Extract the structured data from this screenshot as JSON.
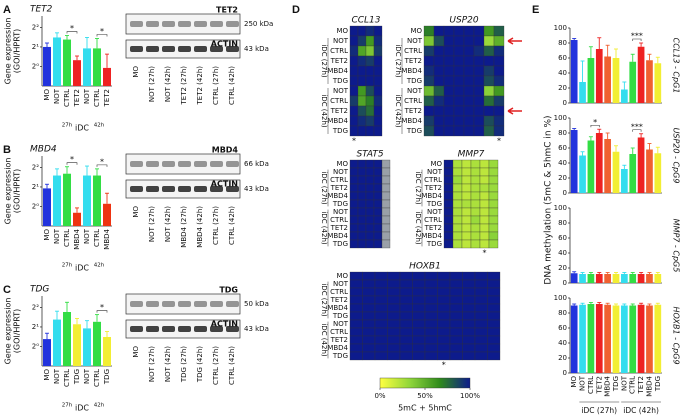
{
  "panel_labels": [
    "A",
    "B",
    "C",
    "D",
    "E"
  ],
  "chart_data": [
    {
      "type": "bar",
      "title": "TET2",
      "y_label": [
        "Gene expression",
        "(GOI/HPRT)"
      ],
      "log_base": 2,
      "categories": [
        "MO",
        "NOT",
        "CTRL",
        "TET2",
        "NOT",
        "CTRL",
        "TET2"
      ],
      "colors": [
        "#2233dd",
        "#33ddee",
        "#33dd44",
        "#ee2222",
        "#33ddee",
        "#33dd44",
        "#ee2222"
      ],
      "values": [
        2.0,
        2.8,
        2.6,
        1.25,
        1.9,
        1.9,
        0.95
      ],
      "errors": [
        0.3,
        0.5,
        0.4,
        0.2,
        0.9,
        0.8,
        0.6
      ],
      "ylim": [
        0.5,
        6
      ],
      "yticks": [
        {
          "value": 1,
          "label": "2⁰"
        },
        {
          "value": 2,
          "label": "2¹"
        },
        {
          "value": 4,
          "label": "2²"
        }
      ],
      "group_labels": [
        "27h",
        "iDC",
        "42h"
      ],
      "annotations": [
        "*",
        "*"
      ]
    },
    {
      "type": "bar",
      "title": "MBD4",
      "y_label": [
        "Gene expression",
        "(GOI/HPRT)"
      ],
      "log_base": 2,
      "categories": [
        "MO",
        "NOT",
        "CTRL",
        "MBD4",
        "NOT",
        "CTRL",
        "MBD4"
      ],
      "colors": [
        "#2233dd",
        "#33ddee",
        "#33dd44",
        "#ee3311",
        "#33ddee",
        "#33dd44",
        "#ee3311"
      ],
      "values": [
        1.9,
        3.0,
        3.2,
        0.8,
        3.0,
        3.0,
        1.1
      ],
      "errors": [
        0.3,
        0.8,
        0.9,
        0.15,
        1.2,
        0.8,
        0.5
      ],
      "ylim": [
        0.5,
        6
      ],
      "yticks": [
        {
          "value": 1,
          "label": "2⁰"
        },
        {
          "value": 2,
          "label": "2¹"
        },
        {
          "value": 4,
          "label": "2²"
        }
      ],
      "group_labels": [
        "27h",
        "iDC",
        "42h"
      ],
      "annotations": [
        "*",
        "*"
      ]
    },
    {
      "type": "bar",
      "title": "TDG",
      "y_label": [
        "Gene expression",
        "(GOI/HPRT)"
      ],
      "log_base": 2,
      "categories": [
        "MO",
        "NOT",
        "CTRL",
        "TDG",
        "NOT",
        "CTRL",
        "TDG"
      ],
      "colors": [
        "#2233dd",
        "#33ddee",
        "#33dd44",
        "#f2ee33",
        "#33ddee",
        "#33dd44",
        "#f2ee33"
      ],
      "values": [
        1.3,
        2.6,
        3.4,
        2.2,
        1.9,
        2.4,
        1.4
      ],
      "errors": [
        0.3,
        0.9,
        1.4,
        0.5,
        0.6,
        0.7,
        0.3
      ],
      "ylim": [
        0.5,
        6
      ],
      "yticks": [
        {
          "value": 1,
          "label": "2⁰"
        },
        {
          "value": 2,
          "label": "2¹"
        },
        {
          "value": 4,
          "label": "2²"
        }
      ],
      "group_labels": [
        "27h",
        "iDC",
        "42h"
      ],
      "annotations": [
        "*"
      ]
    },
    {
      "type": "heatmap",
      "title": "CCL13",
      "footnote": "*",
      "rows": [
        "MO",
        "NOT",
        "CTRL",
        "TET2",
        "MBD4",
        "TDG",
        "NOT",
        "CTRL",
        "TET2",
        "MBD4",
        "TDG"
      ],
      "row_groups": [
        "iDC (27h)",
        "iDC (42h)"
      ],
      "values": [
        [
          100,
          100,
          95,
          100
        ],
        [
          100,
          90,
          60,
          95
        ],
        [
          95,
          55,
          40,
          90
        ],
        [
          100,
          95,
          90,
          100
        ],
        [
          100,
          100,
          100,
          100
        ],
        [
          100,
          100,
          100,
          100
        ],
        [
          100,
          60,
          85,
          100
        ],
        [
          90,
          55,
          70,
          95
        ],
        [
          100,
          85,
          75,
          100
        ],
        [
          100,
          95,
          90,
          100
        ],
        [
          100,
          100,
          100,
          100
        ]
      ]
    },
    {
      "type": "heatmap",
      "title": "USP20",
      "footnote": "*",
      "rows": [
        "MO",
        "NOT",
        "CTRL",
        "TET2",
        "MBD4",
        "TDG",
        "NOT",
        "CTRL",
        "TET2",
        "MBD4",
        "TDG"
      ],
      "row_groups": [
        "iDC (27h)",
        "iDC (42h)"
      ],
      "values": [
        [
          70,
          100,
          100,
          100,
          100,
          100,
          60,
          80
        ],
        [
          40,
          85,
          100,
          100,
          100,
          100,
          30,
          50
        ],
        [
          90,
          100,
          100,
          100,
          100,
          95,
          80,
          95
        ],
        [
          100,
          100,
          100,
          100,
          100,
          100,
          100,
          100
        ],
        [
          95,
          100,
          100,
          100,
          100,
          100,
          90,
          100
        ],
        [
          90,
          100,
          100,
          100,
          100,
          100,
          85,
          95
        ],
        [
          45,
          80,
          100,
          100,
          100,
          100,
          35,
          60
        ],
        [
          80,
          95,
          100,
          100,
          100,
          100,
          75,
          90
        ],
        [
          100,
          100,
          100,
          100,
          100,
          100,
          100,
          100
        ],
        [
          90,
          100,
          100,
          100,
          100,
          100,
          85,
          95
        ],
        [
          85,
          100,
          100,
          100,
          100,
          100,
          80,
          95
        ]
      ]
    },
    {
      "type": "heatmap",
      "title": "STAT5",
      "rows": [
        "MO",
        "NOT",
        "CTRL",
        "TET2",
        "MBD4",
        "TDG",
        "NOT",
        "CTRL",
        "TET2",
        "MBD4",
        "TDG"
      ],
      "row_groups": [
        "iDC (27h)",
        "iDC (42h)"
      ],
      "values": [
        [
          100,
          100,
          100,
          100,
          null
        ],
        [
          100,
          100,
          100,
          100,
          null
        ],
        [
          100,
          100,
          100,
          100,
          null
        ],
        [
          100,
          100,
          100,
          100,
          null
        ],
        [
          100,
          100,
          100,
          100,
          null
        ],
        [
          100,
          100,
          100,
          100,
          null
        ],
        [
          100,
          100,
          100,
          100,
          null
        ],
        [
          100,
          100,
          100,
          100,
          null
        ],
        [
          100,
          100,
          100,
          100,
          null
        ],
        [
          100,
          100,
          100,
          100,
          null
        ],
        [
          100,
          100,
          100,
          100,
          null
        ]
      ]
    },
    {
      "type": "heatmap",
      "title": "MMP7",
      "footnote": "*",
      "rows": [
        "MO",
        "NOT",
        "CTRL",
        "TET2",
        "MBD4",
        "TDG",
        "NOT",
        "CTRL",
        "TET2",
        "MBD4",
        "TDG"
      ],
      "row_groups": [
        "iDC (27h)",
        "iDC (42h)"
      ],
      "values": [
        [
          100,
          25,
          20,
          25,
          20,
          30
        ],
        [
          100,
          25,
          20,
          25,
          20,
          30
        ],
        [
          100,
          30,
          20,
          25,
          20,
          30
        ],
        [
          100,
          25,
          20,
          25,
          25,
          30
        ],
        [
          100,
          25,
          20,
          25,
          20,
          30
        ],
        [
          100,
          25,
          25,
          25,
          20,
          30
        ],
        [
          100,
          25,
          20,
          25,
          20,
          30
        ],
        [
          100,
          25,
          20,
          30,
          20,
          30
        ],
        [
          100,
          25,
          20,
          25,
          20,
          30
        ],
        [
          100,
          25,
          20,
          25,
          20,
          35
        ],
        [
          100,
          25,
          20,
          25,
          20,
          30
        ]
      ]
    },
    {
      "type": "heatmap",
      "title": "HOXB1",
      "footnote": "*",
      "rows": [
        "MO",
        "NOT",
        "CTRL",
        "TET2",
        "MBD4",
        "TDG",
        "NOT",
        "CTRL",
        "TET2",
        "MBD4",
        "TDG"
      ],
      "row_groups": [
        "iDC (27h)",
        "iDC (42h)"
      ],
      "values": [
        [
          100,
          100,
          100,
          100,
          100,
          100,
          100,
          100,
          100,
          100,
          100,
          100
        ],
        [
          100,
          100,
          100,
          100,
          100,
          100,
          100,
          100,
          100,
          100,
          100,
          100
        ],
        [
          100,
          100,
          100,
          100,
          100,
          100,
          100,
          100,
          100,
          100,
          100,
          100
        ],
        [
          100,
          100,
          100,
          100,
          100,
          100,
          100,
          100,
          100,
          100,
          100,
          100
        ],
        [
          100,
          100,
          100,
          100,
          100,
          100,
          100,
          100,
          100,
          100,
          100,
          100
        ],
        [
          100,
          100,
          100,
          100,
          100,
          100,
          100,
          100,
          100,
          100,
          100,
          100
        ],
        [
          100,
          100,
          100,
          100,
          100,
          100,
          100,
          100,
          100,
          100,
          100,
          100
        ],
        [
          100,
          100,
          100,
          100,
          100,
          100,
          100,
          100,
          100,
          100,
          100,
          100
        ],
        [
          100,
          100,
          100,
          100,
          100,
          100,
          100,
          100,
          100,
          100,
          100,
          100
        ],
        [
          100,
          100,
          100,
          100,
          100,
          100,
          100,
          100,
          100,
          100,
          100,
          100
        ],
        [
          100,
          100,
          100,
          100,
          100,
          100,
          100,
          100,
          100,
          100,
          100,
          100
        ]
      ]
    },
    {
      "type": "bar",
      "side_label": "CCL13 - CpG1",
      "y_label": "DNA methylation (5mC & 5hmC in %)",
      "colors": [
        "#2233dd",
        "#33ddee",
        "#33dd44",
        "#ee2222",
        "#f06030",
        "#f2ee33",
        "#33ddee",
        "#33dd44",
        "#ee2222",
        "#f06030",
        "#f2ee33"
      ],
      "values": [
        84,
        28,
        60,
        72,
        62,
        60,
        18,
        55,
        75,
        57,
        53
      ],
      "errors": [
        2,
        28,
        15,
        15,
        15,
        12,
        10,
        10,
        5,
        8,
        8
      ],
      "ylim": [
        0,
        100
      ],
      "yticks": [
        0,
        20,
        40,
        60,
        80,
        100
      ],
      "annotations": [
        "***"
      ]
    },
    {
      "type": "bar",
      "side_label": "USP20 - CpG9",
      "colors": [
        "#2233dd",
        "#33ddee",
        "#33dd44",
        "#ee2222",
        "#f06030",
        "#f2ee33",
        "#33ddee",
        "#33dd44",
        "#ee2222",
        "#f06030",
        "#f2ee33"
      ],
      "values": [
        84,
        50,
        70,
        80,
        72,
        55,
        32,
        52,
        74,
        58,
        53
      ],
      "errors": [
        2,
        5,
        5,
        5,
        8,
        8,
        5,
        8,
        5,
        8,
        8
      ],
      "ylim": [
        0,
        100
      ],
      "yticks": [
        0,
        20,
        40,
        60,
        80,
        100
      ],
      "annotations": [
        "*",
        "***"
      ]
    },
    {
      "type": "bar",
      "side_label": "MMP7 - CpG5",
      "colors": [
        "#2233dd",
        "#33ddee",
        "#33dd44",
        "#ee2222",
        "#f06030",
        "#f2ee33",
        "#33ddee",
        "#33dd44",
        "#ee2222",
        "#f06030",
        "#f2ee33"
      ],
      "values": [
        13,
        12,
        12,
        12,
        12,
        12,
        12,
        12,
        12,
        12,
        12
      ],
      "errors": [
        2,
        2,
        2,
        2,
        2,
        2,
        2,
        2,
        2,
        2,
        2
      ],
      "ylim": [
        0,
        100
      ],
      "yticks": [
        0,
        20,
        40,
        60,
        80,
        100
      ]
    },
    {
      "type": "bar",
      "side_label": "HOXB1 - CpG9",
      "categories": [
        "MO",
        "NOT",
        "CTRL",
        "TET2",
        "MBD4",
        "TDG",
        "NOT",
        "CTRL",
        "TET2",
        "MBD4",
        "TDG"
      ],
      "colors": [
        "#2233dd",
        "#33ddee",
        "#33dd44",
        "#ee2222",
        "#f06030",
        "#f2ee33",
        "#33ddee",
        "#33dd44",
        "#ee2222",
        "#f06030",
        "#f2ee33"
      ],
      "values": [
        90,
        91,
        92,
        92,
        91,
        90,
        90,
        90,
        91,
        90,
        91
      ],
      "errors": [
        2,
        2,
        2,
        2,
        2,
        2,
        2,
        2,
        2,
        2,
        2
      ],
      "ylim": [
        0,
        100
      ],
      "yticks": [
        0,
        20,
        40,
        60,
        80,
        100
      ],
      "group_labels": [
        "iDC (27h)",
        "iDC (42h)"
      ]
    }
  ],
  "colorbar": {
    "colors": [
      "#ffff40",
      "#8fd63a",
      "#2f8a1c",
      "#0d1b8c"
    ],
    "lim": [
      0,
      100
    ],
    "ticks": [
      {
        "value": 0,
        "label": "0%"
      },
      {
        "value": 50,
        "label": "50%"
      },
      {
        "value": 100,
        "label": "100%"
      }
    ],
    "label": "5mC + 5hmC"
  },
  "blots": [
    {
      "bands": [
        {
          "name": "TET2",
          "size": "250 kDa"
        },
        {
          "name": "ACTIN",
          "size": "43 kDa"
        }
      ],
      "lanes": [
        "MO",
        "NOT (27h)",
        "NOT (42h)",
        "TET2 (27h)",
        "TET2 (42h)",
        "CTRL (27h)",
        "CTRL (42h)"
      ]
    },
    {
      "bands": [
        {
          "name": "MBD4",
          "size": "66 kDa"
        },
        {
          "name": "ACTIN",
          "size": "43 kDa"
        }
      ],
      "lanes": [
        "MO",
        "NOT (27h)",
        "NOT (42h)",
        "MBD4 (27h)",
        "MBD4 (42h)",
        "CTRL (27h)",
        "CTRL (42h)"
      ]
    },
    {
      "bands": [
        {
          "name": "TDG",
          "size": "50 kDa"
        },
        {
          "name": "ACTIN",
          "size": "43 kDa"
        }
      ],
      "lanes": [
        "MO",
        "NOT (27h)",
        "NOT (42h)",
        "TDG (27h)",
        "TDG (42h)",
        "CTRL (27h)",
        "CTRL (42h)"
      ]
    }
  ]
}
